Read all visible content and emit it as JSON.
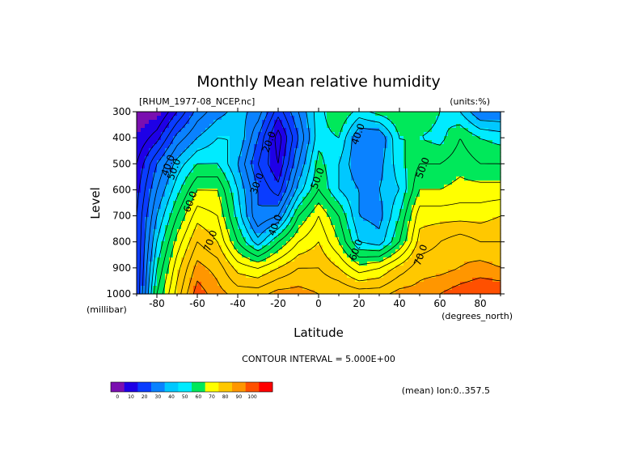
{
  "chart_data": {
    "type": "heatmap",
    "title": "Monthly Mean relative humidity",
    "file_label": "[RHUM_1977-08_NCEP.nc]",
    "units_label": "(units:%)",
    "xlabel": "Latitude",
    "ylabel": "Level",
    "x_unit_label": "(degrees_north)",
    "y_unit_label": "(millibar)",
    "xlim": [
      -90,
      90
    ],
    "ylim": [
      1000,
      300
    ],
    "x_ticks": [
      -80,
      -60,
      -40,
      -20,
      0,
      20,
      40,
      60,
      80
    ],
    "y_ticks": [
      300,
      400,
      500,
      600,
      700,
      800,
      900,
      1000
    ],
    "x_tick_labels": [
      "-80",
      "-60",
      "-40",
      "-20",
      "0",
      "20",
      "40",
      "60",
      "80"
    ],
    "y_tick_labels": [
      "300",
      "400",
      "500",
      "600",
      "700",
      "800",
      "900",
      "1000"
    ],
    "contour_interval_text": "CONTOUR INTERVAL = 5.000E+00",
    "mean_note": "(mean) lon:0..357.5",
    "colorbar": {
      "bounds": [
        0,
        10,
        20,
        30,
        40,
        50,
        60,
        70,
        80,
        90,
        100
      ],
      "labels": [
        "0",
        "10",
        "20",
        "30",
        "40",
        "50",
        "60",
        "70",
        "80",
        "90",
        "100"
      ],
      "colors": [
        "#7a0fb0",
        "#1e00e6",
        "#0a3cff",
        "#0a82ff",
        "#00c8ff",
        "#00ebff",
        "#00e85a",
        "#ffff00",
        "#ffc800",
        "#ff9600",
        "#ff5000",
        "#ff0000"
      ]
    },
    "level_colors": [
      {
        "min": 0,
        "max": 10,
        "color": "#7a0fb0"
      },
      {
        "min": 10,
        "max": 20,
        "color": "#1e00e6"
      },
      {
        "min": 20,
        "max": 30,
        "color": "#0a3cff"
      },
      {
        "min": 30,
        "max": 40,
        "color": "#0a82ff"
      },
      {
        "min": 40,
        "max": 45,
        "color": "#00c8ff"
      },
      {
        "min": 45,
        "max": 50,
        "color": "#00ebff"
      },
      {
        "min": 50,
        "max": 60,
        "color": "#00e85a"
      },
      {
        "min": 60,
        "max": 70,
        "color": "#ffff00"
      },
      {
        "min": 70,
        "max": 80,
        "color": "#ffc800"
      },
      {
        "min": 80,
        "max": 85,
        "color": "#ff9600"
      },
      {
        "min": 85,
        "max": 92,
        "color": "#ff5000"
      },
      {
        "min": 92,
        "max": 101,
        "color": "#ff0000"
      }
    ],
    "contour_labels": [
      {
        "text": "40.0",
        "lat": -73,
        "lev": 510
      },
      {
        "text": "40.0",
        "lat": 21,
        "lev": 390
      },
      {
        "text": "50.0",
        "lat": -70,
        "lev": 525
      },
      {
        "text": "50.0",
        "lat": 1,
        "lev": 560
      },
      {
        "text": "50.0",
        "lat": 53,
        "lev": 520
      },
      {
        "text": "60.0",
        "lat": -62,
        "lev": 650
      },
      {
        "text": "60.0",
        "lat": 20,
        "lev": 835
      },
      {
        "text": "70.0",
        "lat": -52,
        "lev": 800
      },
      {
        "text": "70.0",
        "lat": 52,
        "lev": 855
      },
      {
        "text": "40.0",
        "lat": -20,
        "lev": 740
      },
      {
        "text": "20.0",
        "lat": -23,
        "lev": 420
      },
      {
        "text": "30.0",
        "lat": -29,
        "lev": 580
      }
    ],
    "lat_grid": [
      -90,
      -80,
      -70,
      -60,
      -50,
      -40,
      -30,
      -20,
      -10,
      0,
      10,
      20,
      30,
      40,
      50,
      60,
      70,
      80,
      90
    ],
    "lev_grid": [
      300,
      400,
      500,
      600,
      700,
      800,
      900,
      1000
    ],
    "rh": [
      [
        5,
        8,
        20,
        32,
        38,
        42,
        38,
        22,
        35,
        48,
        55,
        48,
        52,
        55,
        55,
        50,
        45,
        35,
        35
      ],
      [
        10,
        18,
        32,
        40,
        45,
        45,
        30,
        12,
        30,
        48,
        50,
        35,
        35,
        50,
        50,
        48,
        55,
        50,
        48
      ],
      [
        15,
        30,
        42,
        50,
        50,
        40,
        25,
        15,
        35,
        52,
        45,
        35,
        38,
        48,
        55,
        55,
        58,
        55,
        55
      ],
      [
        18,
        35,
        48,
        60,
        60,
        45,
        30,
        22,
        42,
        55,
        45,
        40,
        40,
        45,
        60,
        60,
        62,
        62,
        62
      ],
      [
        20,
        40,
        55,
        68,
        65,
        48,
        30,
        35,
        55,
        65,
        55,
        40,
        38,
        50,
        68,
        68,
        68,
        68,
        70
      ],
      [
        20,
        45,
        62,
        75,
        70,
        55,
        42,
        55,
        65,
        70,
        60,
        45,
        42,
        55,
        72,
        75,
        78,
        75,
        75
      ],
      [
        20,
        50,
        68,
        82,
        78,
        68,
        65,
        70,
        75,
        75,
        70,
        62,
        65,
        72,
        78,
        78,
        80,
        82,
        80
      ],
      [
        20,
        55,
        72,
        88,
        82,
        78,
        78,
        82,
        82,
        80,
        80,
        78,
        78,
        82,
        82,
        85,
        88,
        90,
        90
      ]
    ]
  },
  "colors": {
    "line": "#000000",
    "background": "#ffffff"
  }
}
